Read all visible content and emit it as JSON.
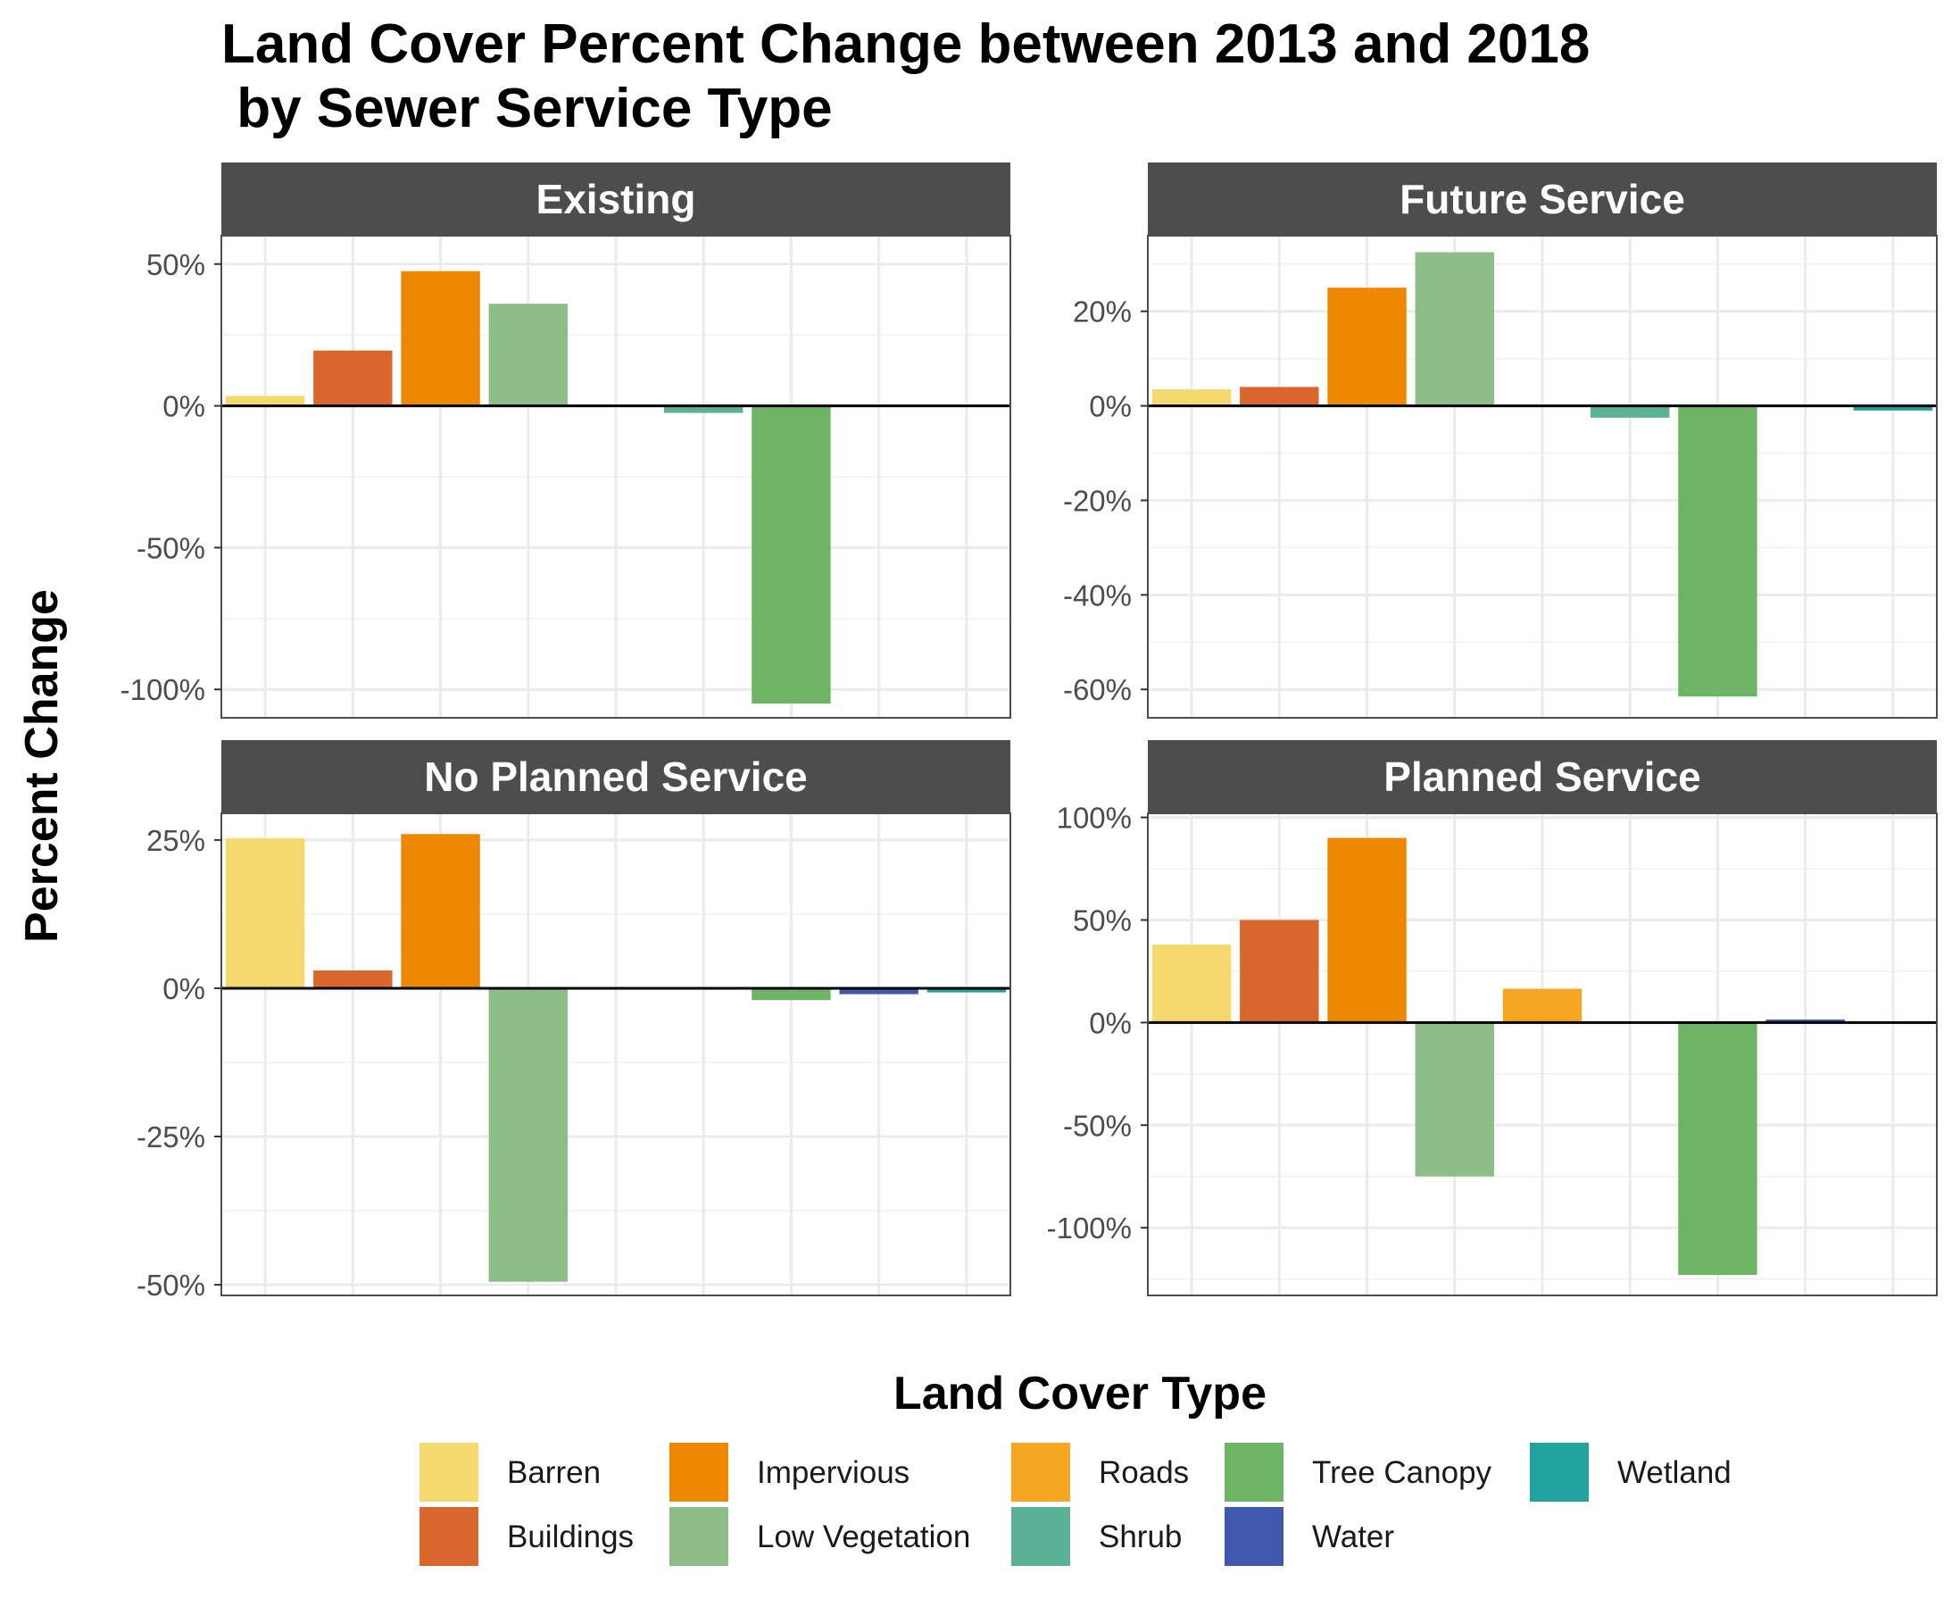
{
  "chart_data": {
    "type": "bar",
    "title": "Land Cover Percent Change between 2013 and 2018\n by Sewer Service Type",
    "ylabel": "Percent Change",
    "legend_title": "Land Cover Type",
    "legend_position": "bottom",
    "grid": true,
    "categories": [
      "Barren",
      "Buildings",
      "Impervious",
      "Low Vegetation",
      "Roads",
      "Shrub",
      "Tree Canopy",
      "Water",
      "Wetland"
    ],
    "colors": {
      "Barren": "#F6D96E",
      "Buildings": "#D9662C",
      "Impervious": "#EE8800",
      "Low Vegetation": "#8DBE87",
      "Roads": "#F5A623",
      "Shrub": "#5AB196",
      "Tree Canopy": "#6DB564",
      "Water": "#4059AD",
      "Wetland": "#20A39E"
    },
    "panels": [
      {
        "name": "Existing",
        "ylim": [
          -110,
          60
        ],
        "yticks": [
          50,
          0,
          -50,
          -100
        ],
        "yticklabels": [
          "50%",
          "0%",
          "-50%",
          "-100%"
        ],
        "values": [
          3.5,
          19.5,
          47.5,
          36,
          0.5,
          -2.5,
          -105,
          0,
          0
        ]
      },
      {
        "name": "Future Service",
        "ylim": [
          -66,
          36
        ],
        "yticks": [
          20,
          0,
          -20,
          -40,
          -60
        ],
        "yticklabels": [
          "20%",
          "0%",
          "-20%",
          "-40%",
          "-60%"
        ],
        "values": [
          3.5,
          4,
          25,
          32.5,
          0,
          -2.5,
          -61.5,
          0,
          -1
        ]
      },
      {
        "name": "No Planned Service",
        "ylim": [
          -51.8,
          29.5
        ],
        "yticks": [
          25,
          0,
          -25,
          -50
        ],
        "yticklabels": [
          "25%",
          "0%",
          "-25%",
          "-50%"
        ],
        "values": [
          25.3,
          3,
          26,
          -49.5,
          0,
          0,
          -2,
          -1,
          -0.7
        ]
      },
      {
        "name": "Planned Service",
        "ylim": [
          -133,
          102
        ],
        "yticks": [
          100,
          50,
          0,
          -50,
          -100
        ],
        "yticklabels": [
          "100%",
          "50%",
          "0%",
          "-50%",
          "-100%"
        ],
        "values": [
          38,
          50,
          90,
          -75,
          16.5,
          0.5,
          -123,
          1.5,
          0
        ]
      }
    ]
  }
}
